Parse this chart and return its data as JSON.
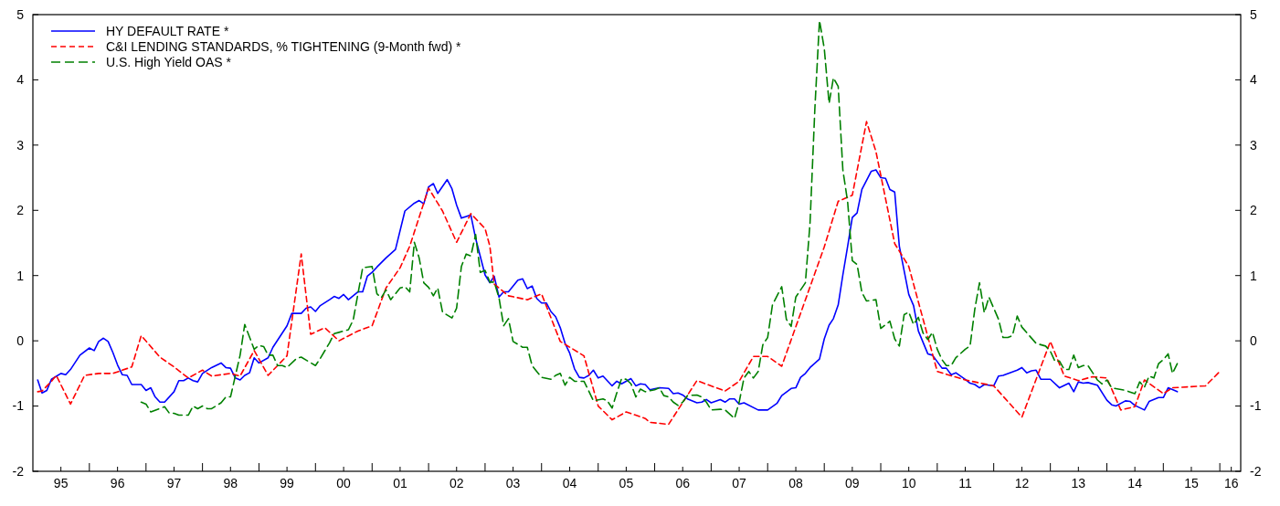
{
  "chart_data": {
    "type": "line",
    "legend": "top left",
    "grid": false,
    "xlim": [
      "1995-01-01",
      "2016-05-15"
    ],
    "xticks": [
      {
        "value": "1995-07-01",
        "label": "95"
      },
      {
        "value": "1996-07-01",
        "label": "96"
      },
      {
        "value": "1997-07-01",
        "label": "97"
      },
      {
        "value": "1998-07-01",
        "label": "98"
      },
      {
        "value": "1999-07-01",
        "label": "99"
      },
      {
        "value": "2000-07-01",
        "label": "00"
      },
      {
        "value": "2001-07-01",
        "label": "01"
      },
      {
        "value": "2002-07-01",
        "label": "02"
      },
      {
        "value": "2003-07-01",
        "label": "03"
      },
      {
        "value": "2004-07-01",
        "label": "04"
      },
      {
        "value": "2005-07-01",
        "label": "05"
      },
      {
        "value": "2006-07-01",
        "label": "06"
      },
      {
        "value": "2007-07-01",
        "label": "07"
      },
      {
        "value": "2008-07-01",
        "label": "08"
      },
      {
        "value": "2009-07-01",
        "label": "09"
      },
      {
        "value": "2010-07-01",
        "label": "10"
      },
      {
        "value": "2011-07-01",
        "label": "11"
      },
      {
        "value": "2012-07-01",
        "label": "12"
      },
      {
        "value": "2013-07-01",
        "label": "13"
      },
      {
        "value": "2014-07-01",
        "label": "14"
      },
      {
        "value": "2015-07-01",
        "label": "15"
      },
      {
        "value": "2016-03-15",
        "label": "16"
      },
      {
        "value": "1996-01-01",
        "label": null
      },
      {
        "value": "1997-01-01",
        "label": null
      },
      {
        "value": "1998-01-01",
        "label": null
      },
      {
        "value": "1999-01-01",
        "label": null
      },
      {
        "value": "2000-01-01",
        "label": null
      },
      {
        "value": "2001-01-01",
        "label": null
      },
      {
        "value": "2002-01-01",
        "label": null
      },
      {
        "value": "2003-01-01",
        "label": null
      },
      {
        "value": "2004-01-01",
        "label": null
      },
      {
        "value": "2005-01-01",
        "label": null
      },
      {
        "value": "2006-01-01",
        "label": null
      },
      {
        "value": "2007-01-01",
        "label": null
      },
      {
        "value": "2008-01-01",
        "label": null
      },
      {
        "value": "2009-01-01",
        "label": null
      },
      {
        "value": "2010-01-01",
        "label": null
      },
      {
        "value": "2011-01-01",
        "label": null
      },
      {
        "value": "2012-01-01",
        "label": null
      },
      {
        "value": "2013-01-01",
        "label": null
      },
      {
        "value": "2014-01-01",
        "label": null
      },
      {
        "value": "2015-01-01",
        "label": null
      },
      {
        "value": "2016-01-01",
        "label": null
      }
    ],
    "ylim": [
      -2,
      5
    ],
    "yticks": [
      -2,
      -1,
      0,
      1,
      2,
      3,
      4,
      5
    ],
    "y2lim": [
      -2,
      5
    ],
    "y2ticks": [
      -2,
      -1,
      0,
      1,
      2,
      3,
      4,
      5
    ],
    "series": [
      {
        "name": "HY DEFAULT RATE *",
        "color": "#0000ff",
        "line_style": "solid",
        "x": [
          "1995-02",
          "1995-03",
          "1995-04",
          "1995-05",
          "1995-07",
          "1995-08",
          "1995-09",
          "1995-11",
          "1996-01",
          "1996-02",
          "1996-03",
          "1996-04",
          "1996-05",
          "1996-06",
          "1996-07",
          "1996-08",
          "1996-09",
          "1996-10",
          "1996-12",
          "1997-01",
          "1997-02",
          "1997-03",
          "1997-04",
          "1997-05",
          "1997-07",
          "1997-08",
          "1997-09",
          "1997-10",
          "1997-11",
          "1997-12",
          "1998-01",
          "1998-03",
          "1998-05",
          "1998-06",
          "1998-07",
          "1998-08",
          "1998-09",
          "1998-10",
          "1998-11",
          "1998-12",
          "1999-01",
          "1999-03",
          "1999-04",
          "1999-07",
          "1999-08",
          "1999-10",
          "1999-11",
          "1999-12",
          "2000-01",
          "2000-02",
          "2000-04",
          "2000-05",
          "2000-06",
          "2000-07",
          "2000-08",
          "2000-10",
          "2000-11",
          "2000-12",
          "2001-01",
          "2001-02",
          "2001-04",
          "2001-06",
          "2001-08",
          "2001-10",
          "2001-11",
          "2001-12",
          "2002-01",
          "2002-02",
          "2002-03",
          "2002-05",
          "2002-06",
          "2002-07",
          "2002-08",
          "2002-10",
          "2002-11",
          "2003-01",
          "2003-02",
          "2003-03",
          "2003-04",
          "2003-05",
          "2003-06",
          "2003-08",
          "2003-09",
          "2003-10",
          "2003-11",
          "2003-12",
          "2004-01",
          "2004-02",
          "2004-03",
          "2004-04",
          "2004-05",
          "2004-06",
          "2004-07",
          "2004-08",
          "2004-09",
          "2004-10",
          "2004-11",
          "2004-12",
          "2005-01",
          "2005-02",
          "2005-04",
          "2005-05",
          "2005-06",
          "2005-08",
          "2005-09",
          "2005-10",
          "2005-11",
          "2005-12",
          "2006-02",
          "2006-04",
          "2006-05",
          "2006-06",
          "2006-07",
          "2006-08",
          "2006-10",
          "2006-11",
          "2006-12",
          "2007-01",
          "2007-03",
          "2007-04",
          "2007-05",
          "2007-06",
          "2007-07",
          "2007-08",
          "2007-11",
          "2008-01",
          "2008-03",
          "2008-04",
          "2008-06",
          "2008-07",
          "2008-08",
          "2008-09",
          "2008-10",
          "2008-12",
          "2009-01",
          "2009-02",
          "2009-03",
          "2009-04",
          "2009-05",
          "2009-06",
          "2009-07",
          "2009-08",
          "2009-09",
          "2009-11",
          "2009-12",
          "2010-01",
          "2010-02",
          "2010-03",
          "2010-04",
          "2010-05",
          "2010-07",
          "2010-08",
          "2010-09",
          "2010-11",
          "2010-12",
          "2011-02",
          "2011-03",
          "2011-04",
          "2011-05",
          "2011-07",
          "2011-08",
          "2011-09",
          "2011-10",
          "2011-11",
          "2012-01",
          "2012-02",
          "2012-03",
          "2012-06",
          "2012-07",
          "2012-08",
          "2012-09",
          "2012-10",
          "2012-11",
          "2013-01",
          "2013-03",
          "2013-05",
          "2013-06",
          "2013-07",
          "2013-08",
          "2013-09",
          "2013-11",
          "2014-01",
          "2014-02",
          "2014-03",
          "2014-05",
          "2014-06",
          "2014-07",
          "2014-09",
          "2014-10",
          "2014-12",
          "2015-01",
          "2015-02",
          "2015-04"
        ],
        "values": [
          -0.6,
          -0.8,
          -0.76,
          -0.59,
          -0.5,
          -0.52,
          -0.44,
          -0.22,
          -0.11,
          -0.15,
          -0.01,
          0.04,
          -0.01,
          -0.18,
          -0.37,
          -0.52,
          -0.53,
          -0.67,
          -0.67,
          -0.76,
          -0.72,
          -0.86,
          -0.94,
          -0.94,
          -0.78,
          -0.61,
          -0.61,
          -0.57,
          -0.61,
          -0.63,
          -0.5,
          -0.41,
          -0.34,
          -0.41,
          -0.42,
          -0.57,
          -0.6,
          -0.53,
          -0.49,
          -0.26,
          -0.34,
          -0.26,
          -0.1,
          0.23,
          0.42,
          0.42,
          0.5,
          0.52,
          0.45,
          0.54,
          0.63,
          0.68,
          0.65,
          0.71,
          0.63,
          0.75,
          0.75,
          0.99,
          1.05,
          1.13,
          1.27,
          1.4,
          1.99,
          2.11,
          2.15,
          2.1,
          2.36,
          2.41,
          2.26,
          2.47,
          2.33,
          2.08,
          1.88,
          1.93,
          1.57,
          1.01,
          0.89,
          0.99,
          0.67,
          0.75,
          0.75,
          0.93,
          0.95,
          0.8,
          0.84,
          0.65,
          0.58,
          0.58,
          0.45,
          0.37,
          0.2,
          -0.04,
          -0.19,
          -0.43,
          -0.56,
          -0.57,
          -0.53,
          -0.45,
          -0.57,
          -0.54,
          -0.69,
          -0.62,
          -0.66,
          -0.58,
          -0.69,
          -0.66,
          -0.67,
          -0.75,
          -0.72,
          -0.73,
          -0.81,
          -0.8,
          -0.83,
          -0.89,
          -0.95,
          -0.94,
          -0.9,
          -0.95,
          -0.9,
          -0.94,
          -0.89,
          -0.89,
          -0.97,
          -0.95,
          -1.06,
          -1.06,
          -0.96,
          -0.84,
          -0.73,
          -0.72,
          -0.56,
          -0.5,
          -0.41,
          -0.28,
          0.03,
          0.24,
          0.34,
          0.55,
          1.01,
          1.45,
          1.89,
          1.96,
          2.32,
          2.6,
          2.62,
          2.5,
          2.49,
          2.32,
          2.28,
          1.45,
          0.71,
          0.54,
          0.15,
          -0.2,
          -0.22,
          -0.42,
          -0.42,
          -0.52,
          -0.49,
          -0.59,
          -0.65,
          -0.67,
          -0.72,
          -0.67,
          -0.69,
          -0.54,
          -0.53,
          -0.45,
          -0.41,
          -0.49,
          -0.46,
          -0.45,
          -0.59,
          -0.59,
          -0.72,
          -0.65,
          -0.78,
          -0.63,
          -0.65,
          -0.64,
          -0.68,
          -0.91,
          -0.98,
          -1,
          -0.92,
          -0.93,
          -0.99,
          -1.06,
          -0.93,
          -0.87,
          -0.87,
          -0.72,
          -0.78
        ]
      },
      {
        "name": "C&I LENDING STANDARDS, % TIGHTENING (9-Month fwd) *",
        "color": "#ff0000",
        "line_style": "dashed",
        "x": [
          "1995-02",
          "1995-03",
          "1995-05",
          "1995-06",
          "1995-09",
          "1995-12",
          "1996-03",
          "1996-06",
          "1996-10",
          "1996-12",
          "1997-04",
          "1997-07",
          "1997-10",
          "1998-01",
          "1998-03",
          "1998-07",
          "1998-09",
          "1998-12",
          "1999-03",
          "1999-07",
          "1999-10",
          "1999-12",
          "2000-03",
          "2000-06",
          "2000-10",
          "2001-01",
          "2001-04",
          "2001-07",
          "2001-09",
          "2002-01",
          "2002-04",
          "2002-07",
          "2002-10",
          "2003-01",
          "2003-02",
          "2003-03",
          "2003-06",
          "2003-10",
          "2004-01",
          "2004-04",
          "2004-05",
          "2004-10",
          "2005-01",
          "2005-04",
          "2005-07",
          "2005-11",
          "2005-12",
          "2006-04",
          "2006-10",
          "2007-04",
          "2007-07",
          "2007-10",
          "2008-01",
          "2008-04",
          "2009-01",
          "2009-04",
          "2009-07",
          "2009-10",
          "2009-12",
          "2010-04",
          "2010-07",
          "2011-01",
          "2011-07",
          "2012-01",
          "2012-07",
          "2013-01",
          "2013-04",
          "2013-07",
          "2013-10",
          "2014-01",
          "2014-04",
          "2014-07",
          "2014-09",
          "2015-01",
          "2015-03",
          "2015-10",
          "2016-01"
        ],
        "values": [
          -0.78,
          -0.77,
          -0.62,
          -0.53,
          -0.97,
          -0.53,
          -0.5,
          -0.5,
          -0.4,
          0.08,
          -0.25,
          -0.4,
          -0.57,
          -0.45,
          -0.54,
          -0.5,
          -0.54,
          -0.15,
          -0.53,
          -0.23,
          1.33,
          0.1,
          0.2,
          0,
          0.15,
          0.23,
          0.81,
          1.12,
          1.45,
          2.34,
          1.99,
          1.51,
          1.95,
          1.72,
          1.45,
          0.87,
          0.69,
          0.63,
          0.72,
          0.17,
          -0.01,
          -0.23,
          -1,
          -1.21,
          -1.09,
          -1.19,
          -1.25,
          -1.28,
          -0.61,
          -0.77,
          -0.62,
          -0.24,
          -0.24,
          -0.39,
          1.44,
          2.14,
          2.23,
          3.36,
          2.9,
          1.49,
          1.14,
          -0.47,
          -0.6,
          -0.69,
          -1.17,
          -0.01,
          -0.54,
          -0.61,
          -0.55,
          -0.57,
          -1.06,
          -1.01,
          -0.6,
          -0.81,
          -0.72,
          -0.69,
          -0.47
        ]
      },
      {
        "name": "U.S. High Yield OAS *",
        "color": "#008000",
        "line_style": "dashed",
        "x": [
          "1996-12",
          "1997-01",
          "1997-02",
          "1997-05",
          "1997-06",
          "1997-07",
          "1997-08",
          "1997-10",
          "1997-11",
          "1997-12",
          "1998-01",
          "1998-02",
          "1998-03",
          "1998-05",
          "1998-06",
          "1998-07",
          "1998-09",
          "1998-10",
          "1998-12",
          "1999-01",
          "1999-02",
          "1999-03",
          "1999-04",
          "1999-05",
          "1999-06",
          "1999-07",
          "1999-09",
          "1999-10",
          "2000-01",
          "2000-02",
          "2000-04",
          "2000-05",
          "2000-06",
          "2000-08",
          "2000-09",
          "2000-11",
          "2001-01",
          "2001-02",
          "2001-03",
          "2001-04",
          "2001-05",
          "2001-07",
          "2001-08",
          "2001-09",
          "2001-10",
          "2001-11",
          "2001-12",
          "2002-01",
          "2002-02",
          "2002-03",
          "2002-04",
          "2002-06",
          "2002-07",
          "2002-08",
          "2002-09",
          "2002-10",
          "2002-11",
          "2002-12",
          "2003-01",
          "2003-02",
          "2003-03",
          "2003-04",
          "2003-05",
          "2003-06",
          "2003-07",
          "2003-09",
          "2003-10",
          "2003-11",
          "2003-12",
          "2004-01",
          "2004-03",
          "2004-04",
          "2004-05",
          "2004-06",
          "2004-07",
          "2004-08",
          "2004-10",
          "2004-11",
          "2004-12",
          "2005-02",
          "2005-03",
          "2005-04",
          "2005-05",
          "2005-06",
          "2005-07",
          "2005-08",
          "2005-09",
          "2005-10",
          "2005-11",
          "2006-01",
          "2006-02",
          "2006-03",
          "2006-04",
          "2006-05",
          "2006-06",
          "2006-07",
          "2006-08",
          "2006-10",
          "2006-11",
          "2006-12",
          "2007-01",
          "2007-03",
          "2007-04",
          "2007-06",
          "2007-07",
          "2007-08",
          "2007-09",
          "2007-10",
          "2007-11",
          "2007-12",
          "2008-01",
          "2008-02",
          "2008-04",
          "2008-05",
          "2008-06",
          "2008-07",
          "2008-09",
          "2008-10",
          "2008-11",
          "2008-12",
          "2009-01",
          "2009-02",
          "2009-03",
          "2009-04",
          "2009-05",
          "2009-06",
          "2009-07",
          "2009-08",
          "2009-09",
          "2009-10",
          "2009-12",
          "2010-01",
          "2010-03",
          "2010-04",
          "2010-05",
          "2010-06",
          "2010-07",
          "2010-08",
          "2010-09",
          "2010-10",
          "2010-11",
          "2010-12",
          "2011-01",
          "2011-02",
          "2011-03",
          "2011-04",
          "2011-05",
          "2011-07",
          "2011-08",
          "2011-09",
          "2011-10",
          "2011-11",
          "2011-12",
          "2012-02",
          "2012-03",
          "2012-04",
          "2012-05",
          "2012-06",
          "2012-07",
          "2012-10",
          "2012-12",
          "2013-01",
          "2013-02",
          "2013-03",
          "2013-04",
          "2013-05",
          "2013-06",
          "2013-07",
          "2013-08",
          "2013-09",
          "2013-11",
          "2013-12",
          "2014-01",
          "2014-02",
          "2014-05",
          "2014-07",
          "2014-08",
          "2014-09",
          "2014-10",
          "2014-11",
          "2014-12",
          "2015-01",
          "2015-02",
          "2015-03",
          "2015-04"
        ],
        "values": [
          -0.94,
          -0.97,
          -1.09,
          -1.01,
          -1.11,
          -1.11,
          -1.14,
          -1.14,
          -1,
          -1.04,
          -1,
          -1.04,
          -1.04,
          -0.95,
          -0.86,
          -0.86,
          -0.22,
          0.25,
          -0.13,
          -0.07,
          -0.09,
          -0.22,
          -0.22,
          -0.38,
          -0.38,
          -0.41,
          -0.27,
          -0.25,
          -0.38,
          -0.27,
          -0.03,
          0.11,
          0.13,
          0.17,
          0.32,
          1.12,
          1.14,
          0.72,
          0.66,
          0.78,
          0.63,
          0.81,
          0.83,
          0.75,
          1.51,
          1.27,
          0.89,
          0.82,
          0.69,
          0.81,
          0.44,
          0.35,
          0.5,
          1.14,
          1.33,
          1.3,
          1.63,
          1.05,
          1.08,
          0.9,
          0.9,
          0.66,
          0.23,
          0.34,
          -0.01,
          -0.1,
          -0.1,
          -0.38,
          -0.47,
          -0.56,
          -0.59,
          -0.53,
          -0.5,
          -0.68,
          -0.56,
          -0.62,
          -0.62,
          -0.77,
          -0.92,
          -0.89,
          -0.92,
          -1.03,
          -0.8,
          -0.58,
          -0.59,
          -0.66,
          -0.86,
          -0.74,
          -0.78,
          -0.75,
          -0.72,
          -0.84,
          -0.86,
          -0.94,
          -0.99,
          -0.94,
          -0.84,
          -0.83,
          -0.86,
          -0.94,
          -1.06,
          -1.05,
          -1.06,
          -1.19,
          -0.94,
          -0.57,
          -0.47,
          -0.57,
          -0.47,
          -0.06,
          0.05,
          0.55,
          0.83,
          0.33,
          0.22,
          0.67,
          0.89,
          1.81,
          3.55,
          4.91,
          4.48,
          3.64,
          4.03,
          3.9,
          2.62,
          2.13,
          1.23,
          1.17,
          0.74,
          0.61,
          0.63,
          0.19,
          0.3,
          0.03,
          -0.08,
          0.4,
          0.44,
          0.25,
          0.36,
          0.12,
          0.02,
          0.13,
          -0.13,
          -0.29,
          -0.38,
          -0.38,
          -0.26,
          -0.13,
          -0.08,
          0.49,
          0.89,
          0.43,
          0.67,
          0.33,
          0.05,
          0.05,
          0.08,
          0.38,
          0.21,
          -0.04,
          -0.08,
          -0.16,
          -0.32,
          -0.31,
          -0.44,
          -0.44,
          -0.22,
          -0.41,
          -0.38,
          -0.38,
          -0.6,
          -0.66,
          -0.6,
          -0.72,
          -0.76,
          -0.81,
          -0.63,
          -0.71,
          -0.54,
          -0.57,
          -0.35,
          -0.29,
          -0.2,
          -0.5,
          -0.35
        ]
      }
    ]
  }
}
